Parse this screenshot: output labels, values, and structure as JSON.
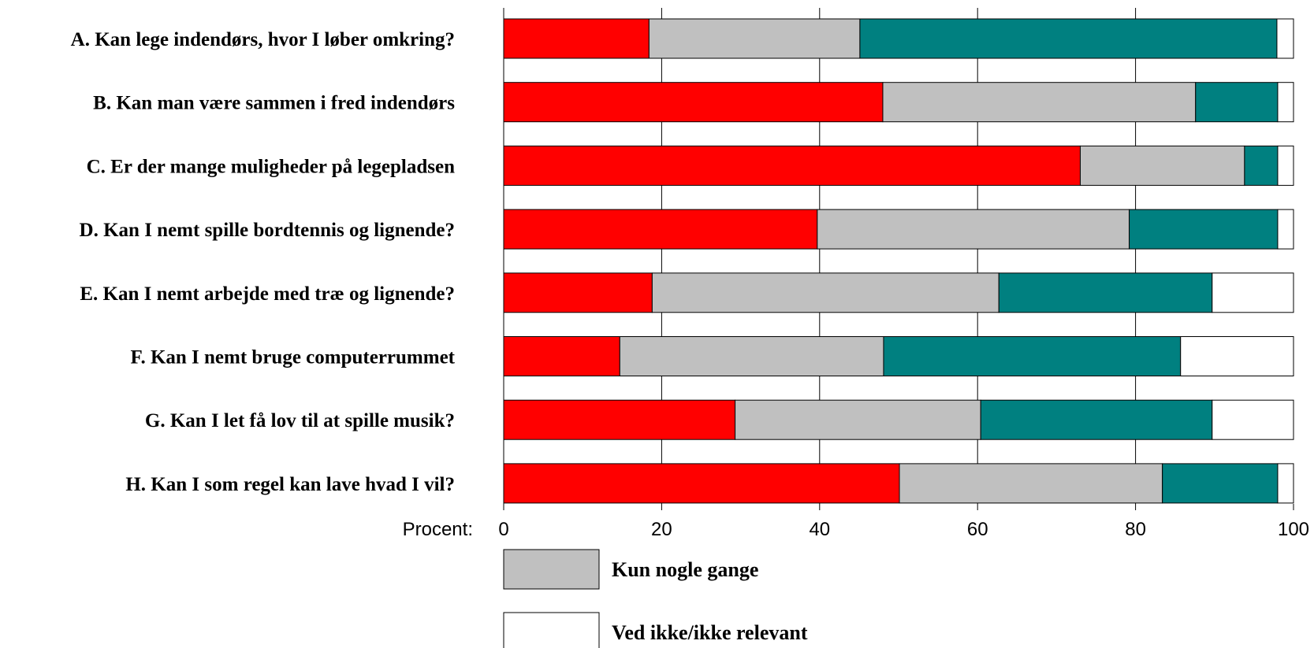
{
  "chart_data": {
    "type": "bar",
    "orientation": "horizontal",
    "stacked": true,
    "categories": [
      "A. Kan lege indendørs, hvor I løber omkring?",
      "B. Kan man være sammen i fred indendørs",
      "C. Er der mange muligheder på legepladsen",
      "D. Kan I nemt spille bordtennis og lignende?",
      "E. Kan I nemt arbejde med træ og lignende?",
      "F. Kan I nemt bruge computerrummet",
      "G. Kan I let få lov til at spille musik?",
      "H. Kan I som regel kan lave hvad I vil?"
    ],
    "series": [
      {
        "color": "#ff0000",
        "values": [
          18.4,
          48.0,
          73.0,
          39.7,
          18.8,
          14.7,
          29.3,
          50.1
        ]
      },
      {
        "name": "Kun nogle gange",
        "color": "#c0c0c0",
        "values": [
          26.7,
          39.6,
          20.8,
          39.5,
          43.9,
          33.4,
          31.1,
          33.3
        ]
      },
      {
        "color": "#008080",
        "values": [
          52.8,
          10.4,
          4.2,
          18.8,
          27.0,
          37.6,
          29.3,
          14.6
        ]
      },
      {
        "name": "Ved ikke/ikke relevant",
        "color": "#ffffff",
        "values": [
          2.1,
          2.0,
          2.0,
          2.0,
          10.3,
          14.3,
          10.3,
          2.0
        ]
      }
    ],
    "xlabel": "Procent:",
    "xlim": [
      0,
      100
    ],
    "xticks": [
      "0",
      "20",
      "40",
      "60",
      "80",
      "100"
    ],
    "grid": true
  },
  "legend": {
    "items": [
      {
        "label": "Kun nogle gange",
        "color": "#c0c0c0"
      },
      {
        "label": "Ved ikke/ikke relevant",
        "color": "#ffffff"
      }
    ]
  }
}
